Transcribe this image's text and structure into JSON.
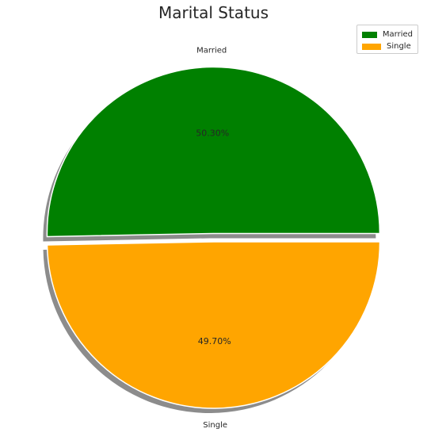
{
  "chart_data": {
    "type": "pie",
    "title": "Marital Status",
    "categories": [
      "Married",
      "Single"
    ],
    "values": [
      50.3,
      49.7
    ],
    "value_labels": [
      "50.30%",
      "49.70%"
    ],
    "colors": [
      "#008000",
      "#FFA500"
    ],
    "explode": [
      0.05,
      0
    ],
    "shadow": true,
    "start_angle_deg": 0,
    "legend": "top-right"
  },
  "legend_items": [
    {
      "label": "Married",
      "color": "#008000"
    },
    {
      "label": "Single",
      "color": "#FFA500"
    }
  ]
}
